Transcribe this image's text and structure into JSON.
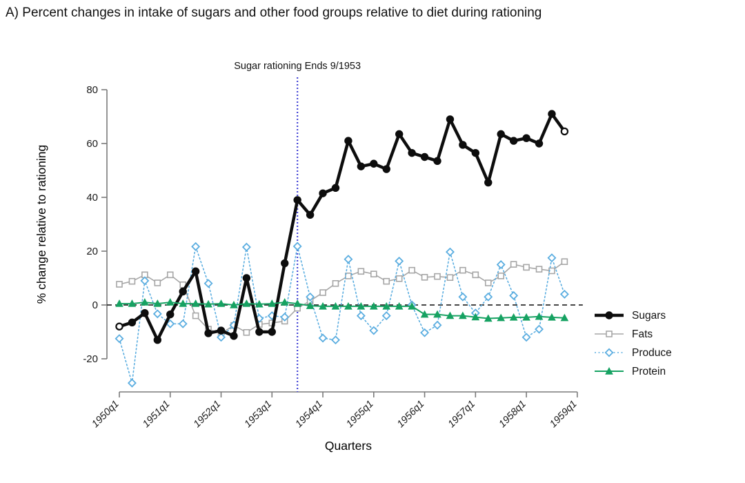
{
  "title": "A) Percent changes in intake of sugars and other food groups relative to diet during rationing",
  "chart_data": {
    "type": "line",
    "title": "A) Percent changes in intake of sugars and other food groups relative to diet during rationing",
    "xlabel": "Quarters",
    "ylabel": "% change relative to rationing",
    "ylim": [
      -20,
      80
    ],
    "y_ticks": [
      80,
      60,
      40,
      20,
      0,
      -20
    ],
    "x_tick_labels": [
      "1950q1",
      "1951q1",
      "1952q1",
      "1953q1",
      "1954q1",
      "1955q1",
      "1956q1",
      "1957q1",
      "1958q1",
      "1959q1"
    ],
    "grid": false,
    "zero_reference_line": 0,
    "legend_position": "right",
    "x_categories": [
      "1950q1",
      "1950q2",
      "1950q3",
      "1950q4",
      "1951q1",
      "1951q2",
      "1951q3",
      "1951q4",
      "1952q1",
      "1952q2",
      "1952q3",
      "1952q4",
      "1953q1",
      "1953q2",
      "1953q3",
      "1953q4",
      "1954q1",
      "1954q2",
      "1954q3",
      "1954q4",
      "1955q1",
      "1955q2",
      "1955q3",
      "1955q4",
      "1956q1",
      "1956q2",
      "1956q3",
      "1956q4",
      "1957q1",
      "1957q2",
      "1957q3",
      "1957q4",
      "1958q1",
      "1958q2",
      "1958q3",
      "1958q4"
    ],
    "series": [
      {
        "name": "Sugars",
        "color": "#0d0d0d",
        "marker": "circle",
        "line_width": 4.5,
        "dash": "solid",
        "open_endpoints": true,
        "values": [
          -8,
          -6.5,
          -3,
          -13,
          -3.5,
          5,
          12.5,
          -10.5,
          -9.5,
          -11.5,
          10,
          -10,
          -10,
          15.5,
          39,
          33.5,
          41.5,
          43.5,
          61,
          51.5,
          52.5,
          50.5,
          63.5,
          56.5,
          55,
          53.5,
          69,
          59.5,
          56.5,
          45.5,
          63.5,
          61,
          62,
          60,
          71,
          64.5
        ]
      },
      {
        "name": "Fats",
        "color": "#a6a6a6",
        "marker": "square-open",
        "line_width": 1.6,
        "dash": "solid",
        "open_endpoints": false,
        "values": [
          7.7,
          8.8,
          11.2,
          8.2,
          11.2,
          7.5,
          -4,
          -9,
          -10.6,
          -7.6,
          -10.2,
          -7.2,
          -6.7,
          -6,
          -1.2,
          1.5,
          4.6,
          8,
          10.8,
          12.5,
          11.5,
          8.8,
          9.8,
          12.9,
          10.3,
          10.6,
          10.2,
          12.9,
          11.2,
          8.2,
          10.8,
          15.1,
          14,
          13.3,
          12.7,
          16.1
        ]
      },
      {
        "name": "Produce",
        "color": "#5aade0",
        "marker": "diamond-open",
        "line_width": 1.6,
        "dash": "dotted",
        "open_endpoints": false,
        "values": [
          -12.5,
          -29,
          9,
          -3.3,
          -7,
          -7,
          21.7,
          8,
          -12,
          -7.5,
          21.5,
          -5,
          -4,
          -4.5,
          21.8,
          3,
          -12.3,
          -13,
          17,
          -4,
          -9.5,
          -4,
          16.3,
          0,
          -10.3,
          -7.5,
          19.7,
          3,
          -3,
          3,
          15,
          3.5,
          -12,
          -9,
          17.5,
          4
        ]
      },
      {
        "name": "Protein",
        "color": "#16a262",
        "marker": "triangle",
        "line_width": 2,
        "dash": "solid",
        "open_endpoints": false,
        "values": [
          0.5,
          0.5,
          1,
          0.5,
          1,
          0.5,
          0.5,
          0.3,
          0.5,
          0,
          0.5,
          0.3,
          0.5,
          1,
          0.5,
          -0.3,
          -0.5,
          -0.5,
          -0.5,
          -0.5,
          -0.5,
          -0.5,
          -0.5,
          -0.5,
          -3.5,
          -3.5,
          -4,
          -4,
          -4.5,
          -5,
          -4.8,
          -4.6,
          -4.6,
          -4.3,
          -4.6,
          -4.8
        ]
      }
    ],
    "annotation": {
      "label": "Sugar rationing Ends 9/1953",
      "x": "1953q3",
      "line_color": "#4343d6"
    },
    "colors": {
      "axis": "#7a7a7a",
      "tick_text": "#1a1a1a",
      "zero_line": "#2b2b2b"
    }
  }
}
